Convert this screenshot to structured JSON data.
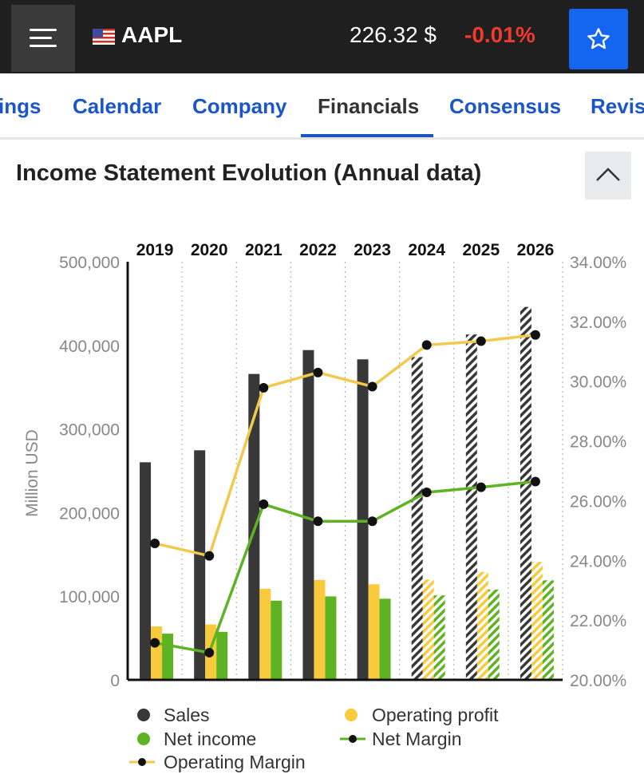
{
  "header": {
    "ticker": "AAPL",
    "price": "226.32",
    "currency": "$",
    "change": "-0.01%",
    "icons": [
      "hamburger-menu-icon",
      "us-flag-icon",
      "star-icon"
    ]
  },
  "tabs": [
    {
      "label": "ings",
      "active": false
    },
    {
      "label": "Calendar",
      "active": false
    },
    {
      "label": "Company",
      "active": false
    },
    {
      "label": "Financials",
      "active": true
    },
    {
      "label": "Consensus",
      "active": false
    },
    {
      "label": "Revis",
      "active": false
    }
  ],
  "section": {
    "title": "Income Statement Evolution (Annual data)",
    "collapse_icon": "chevron-up-icon"
  },
  "colors": {
    "topbar": "#1f1f1f",
    "accent": "#1466f0",
    "negative": "#ef3b2c",
    "sales": "#383838",
    "operating_profit": "#f9cb3c",
    "net_income": "#5db322",
    "net_margin": "#5db322",
    "operating_margin": "#f2c94c"
  },
  "legend": {
    "sales": "Sales",
    "operating_profit": "Operating profit",
    "net_income": "Net income",
    "net_margin": "Net Margin",
    "operating_margin": "Operating Margin"
  },
  "chart_data": {
    "type": "bar",
    "title": "Income Statement Evolution (Annual data)",
    "categories": [
      "2019",
      "2020",
      "2021",
      "2022",
      "2023",
      "2024",
      "2025",
      "2026"
    ],
    "forecast_from": "2024",
    "ylabel": "Million USD",
    "ylim": [
      0,
      500000
    ],
    "yticks": [
      "0",
      "100,000",
      "200,000",
      "300,000",
      "400,000",
      "500,000"
    ],
    "y2lim": [
      20,
      34
    ],
    "y2ticks": [
      "20.00%",
      "22.00%",
      "24.00%",
      "26.00%",
      "28.00%",
      "30.00%",
      "32.00%",
      "34.00%"
    ],
    "grid": "vertical dotted",
    "legend_position": "bottom",
    "series": [
      {
        "name": "Sales",
        "type": "bar",
        "axis": "left",
        "values": [
          260174,
          274515,
          365817,
          394328,
          383285,
          386000,
          413000,
          446000
        ]
      },
      {
        "name": "Operating profit",
        "type": "bar",
        "axis": "left",
        "values": [
          63930,
          66288,
          108949,
          119437,
          114301,
          120000,
          129000,
          141000
        ]
      },
      {
        "name": "Net income",
        "type": "bar",
        "axis": "left",
        "values": [
          55256,
          57411,
          94680,
          99803,
          96995,
          101000,
          108000,
          119000
        ]
      },
      {
        "name": "Net Margin",
        "type": "line",
        "axis": "right",
        "values": [
          21.24,
          20.91,
          25.88,
          25.31,
          25.31,
          26.28,
          26.45,
          26.64
        ]
      },
      {
        "name": "Operating Margin",
        "type": "line",
        "axis": "right",
        "values": [
          24.57,
          24.15,
          29.78,
          30.29,
          29.82,
          31.21,
          31.34,
          31.55
        ]
      }
    ]
  }
}
